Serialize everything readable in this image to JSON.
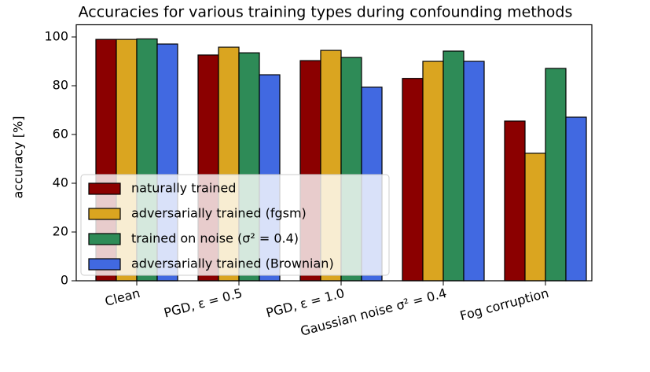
{
  "chart_data": {
    "type": "bar",
    "title": "Accuracies for various training types during confounding methods",
    "ylabel": "accuracy [%]",
    "categories": [
      "Clean",
      "PGD, ε = 0.5",
      "PGD, ε = 1.0",
      "Gaussian noise σ² = 0.4",
      "Fog corruption"
    ],
    "series": [
      {
        "name": "naturally trained",
        "color": "#8b0000",
        "values": [
          99,
          92.6,
          90.3,
          83,
          65.5
        ]
      },
      {
        "name": "adversarially trained (fgsm)",
        "color": "#daa520",
        "values": [
          99,
          95.8,
          94.5,
          90,
          52.3
        ]
      },
      {
        "name": "trained on noise (σ² = 0.4)",
        "color": "#2e8b57",
        "values": [
          99.2,
          93.5,
          91.6,
          94.2,
          87.1
        ]
      },
      {
        "name": "adversarially trained (Brownian)",
        "color": "#4169e1",
        "values": [
          97.1,
          84.5,
          79.4,
          90,
          67.1
        ]
      }
    ],
    "ylim": [
      0,
      105
    ],
    "yticks": [
      0,
      20,
      40,
      60,
      80,
      100
    ],
    "legend": "lower left"
  }
}
